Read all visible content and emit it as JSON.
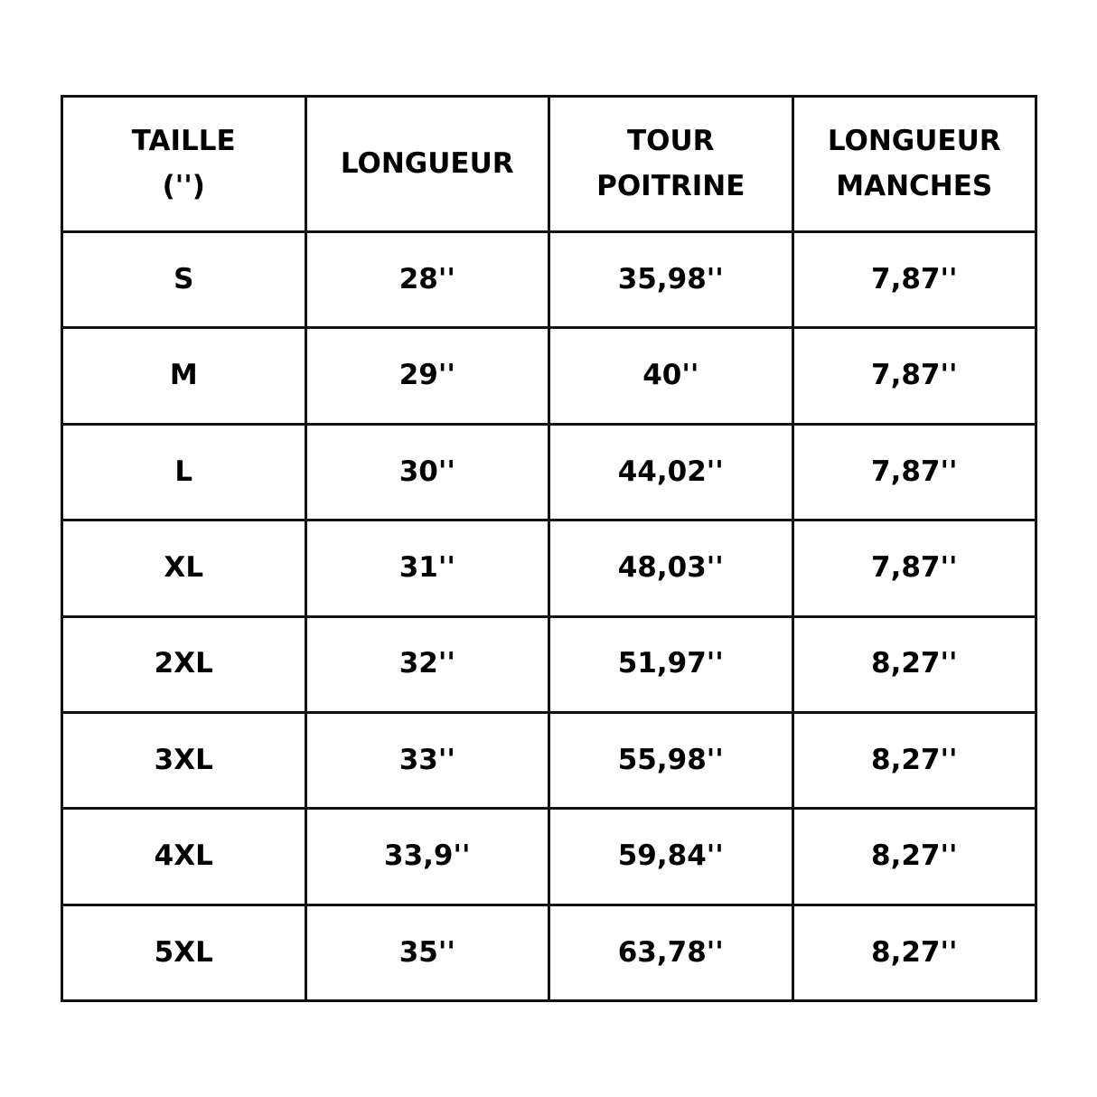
{
  "headers": [
    [
      "TAILLE",
      "('')"
    ],
    [
      "LONGUEUR"
    ],
    [
      "TOUR",
      "POITRINE"
    ],
    [
      "LONGUEUR",
      "MANCHES"
    ]
  ],
  "rows": [
    [
      "S",
      "28''",
      "35,98''",
      "7,87''"
    ],
    [
      "M",
      "29''",
      "40''",
      "7,87''"
    ],
    [
      "L",
      "30''",
      "44,02''",
      "7,87''"
    ],
    [
      "XL",
      "31''",
      "48,03''",
      "7,87''"
    ],
    [
      "2XL",
      "32''",
      "51,97''",
      "8,27''"
    ],
    [
      "3XL",
      "33''",
      "55,98''",
      "8,27''"
    ],
    [
      "4XL",
      "33,9''",
      "59,84''",
      "8,27''"
    ],
    [
      "5XL",
      "35''",
      "63,78''",
      "8,27''"
    ]
  ]
}
